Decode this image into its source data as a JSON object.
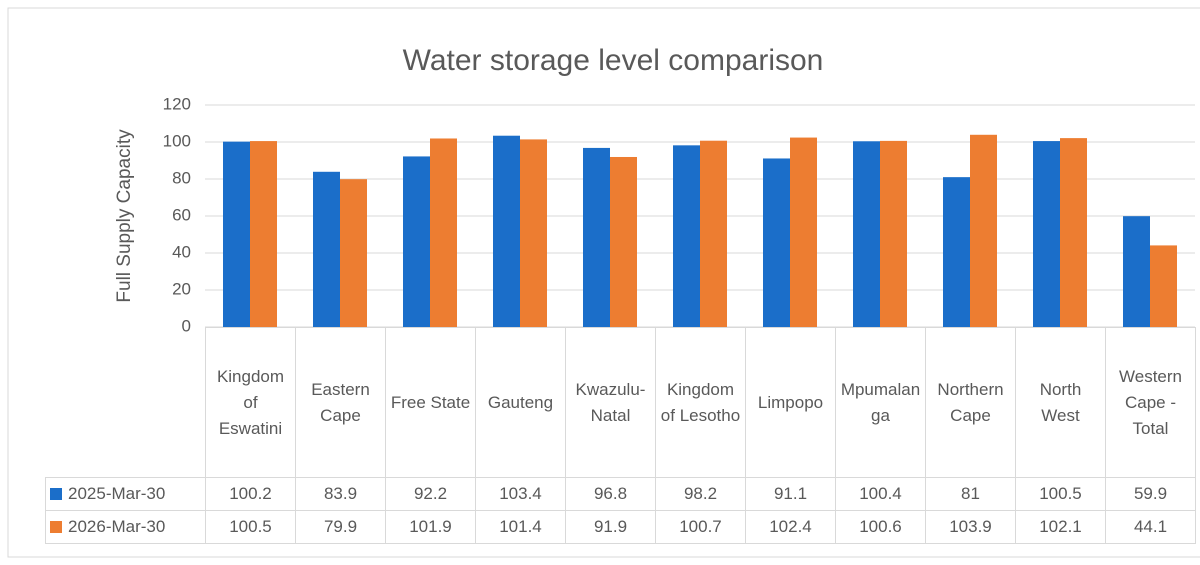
{
  "chart_data": {
    "type": "bar",
    "title": "Water storage level comparison",
    "y_label": "Full Supply Capacity",
    "categories": [
      "Kingdom of Eswatini",
      "Eastern Cape",
      "Free State",
      "Gauteng",
      "Kwazulu-Natal",
      "Kingdom of Lesotho",
      "Limpopo",
      "Mpumalanga",
      "Northern Cape",
      "North West",
      "Western Cape - Total"
    ],
    "series": [
      {
        "name": "2025-Mar-30",
        "color": "#1b6ec9",
        "values": [
          100.2,
          83.9,
          92.2,
          103.4,
          96.8,
          98.2,
          91.1,
          100.4,
          81,
          100.5,
          59.9
        ]
      },
      {
        "name": "2026-Mar-30",
        "color": "#ed7d31",
        "values": [
          100.5,
          79.9,
          101.9,
          101.4,
          91.9,
          100.7,
          102.4,
          100.6,
          103.9,
          102.1,
          44.1
        ]
      }
    ],
    "ylim": [
      0,
      120
    ],
    "yticks": [
      0,
      20,
      40,
      60,
      80,
      100,
      120
    ],
    "grid": true,
    "data_table": true
  }
}
